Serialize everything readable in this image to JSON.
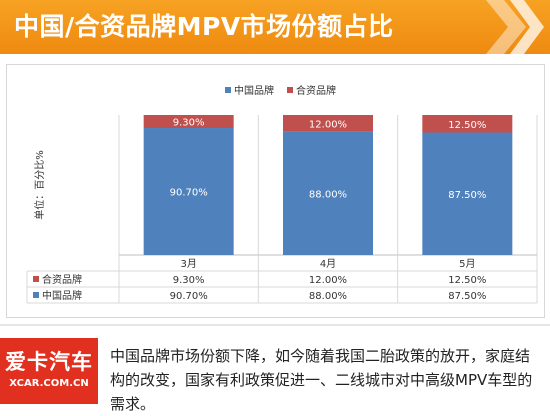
{
  "header": {
    "title": "中国/合资品牌MPV市场份额占比"
  },
  "colors": {
    "banner": "#f39a1b",
    "china": "#4f81bd",
    "jv": "#c0504d",
    "logo": "#e1301f"
  },
  "chart_data": {
    "type": "bar",
    "stacked": true,
    "percent": true,
    "title": "",
    "ylabel": "单位：百分比%",
    "xlabel": "",
    "ylim": [
      0,
      100
    ],
    "grid": false,
    "legend_position": "top",
    "categories": [
      "3月",
      "4月",
      "5月"
    ],
    "series": [
      {
        "name": "中国品牌",
        "color": "#4f81bd",
        "values": [
          90.7,
          88.0,
          87.5
        ],
        "labels": [
          "90.70%",
          "88.00%",
          "87.50%"
        ]
      },
      {
        "name": "合资品牌",
        "color": "#c0504d",
        "values": [
          9.3,
          12.0,
          12.5
        ],
        "labels": [
          "9.30%",
          "12.00%",
          "12.50%"
        ]
      }
    ],
    "table": {
      "rows": [
        {
          "name": "合资品牌",
          "color": "#c0504d",
          "cells": [
            "9.30%",
            "12.00%",
            "12.50%"
          ]
        },
        {
          "name": "中国品牌",
          "color": "#4f81bd",
          "cells": [
            "90.70%",
            "88.00%",
            "87.50%"
          ]
        }
      ]
    }
  },
  "footer": {
    "logo_main": "爱卡汽车",
    "logo_sub": "XCAR.COM.CN",
    "text": "中国品牌市场份额下降，如今随着我国二胎政策的放开，家庭结构的改变，国家有利政策促进一、二线城市对中高级MPV车型的需求。"
  }
}
